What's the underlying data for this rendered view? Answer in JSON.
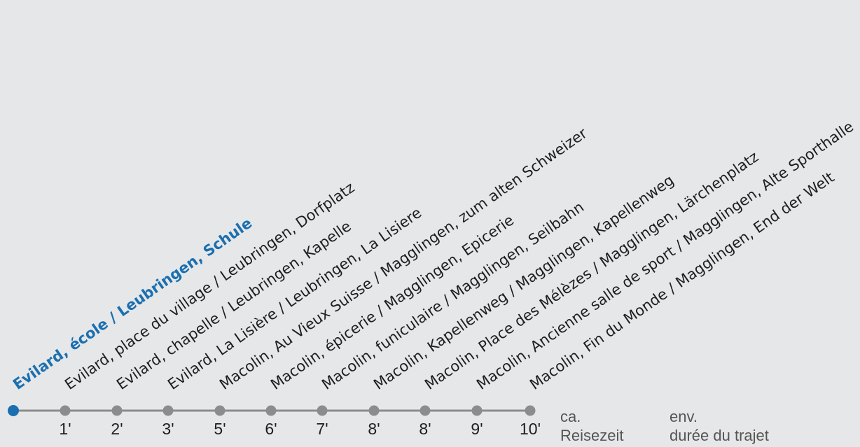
{
  "colors": {
    "current": "#1a6fb0",
    "stop": "#8c8c8c",
    "line": "#8c8c8c",
    "text": "#1e1e1e",
    "legend": "#555555",
    "background": "#e6e7e8"
  },
  "stops": [
    {
      "name": "Evilard, école / Leubringen, Schule",
      "time": "",
      "current": true
    },
    {
      "name": "Evilard, place du village / Leubringen, Dorfplatz",
      "time": "1'"
    },
    {
      "name": "Evilard, chapelle / Leubringen, Kapelle",
      "time": "2'"
    },
    {
      "name": "Evilard, La Lisière / Leubringen, La Lisiere",
      "time": "3'"
    },
    {
      "name": "Macolin, Au Vieux Suisse / Magglingen, zum alten Schweizer",
      "time": "5'"
    },
    {
      "name": "Macolin, épicerie / Magglingen, Epicerie",
      "time": "6'"
    },
    {
      "name": "Macolin, funiculaire / Magglingen, Seilbahn",
      "time": "7'"
    },
    {
      "name": "Macolin, Kapellenweg / Magglingen, Kapellenweg",
      "time": "8'"
    },
    {
      "name": "Macolin, Place des Mélèzes / Magglingen, Lärchenplatz",
      "time": "8'"
    },
    {
      "name": "Macolin, Ancienne salle de sport / Magglingen, Alte Sporthalle",
      "time": "9'"
    },
    {
      "name": "Macolin, Fin du Monde / Magglingen, End der Welt",
      "time": "10'"
    }
  ],
  "legend": {
    "de": {
      "line1": "ca.",
      "line2": "Reisezeit"
    },
    "fr": {
      "line1": "env.",
      "line2": "durée du trajet"
    }
  }
}
